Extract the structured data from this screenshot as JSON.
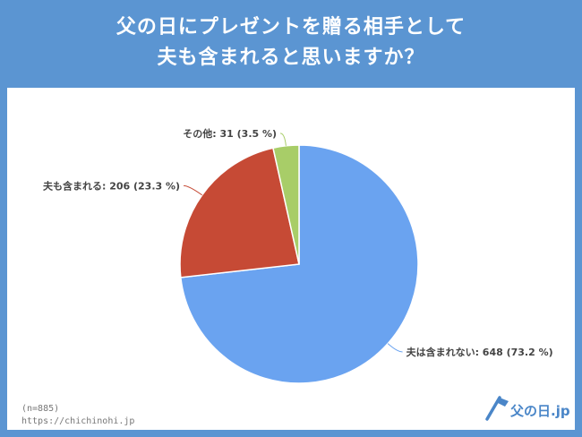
{
  "header": {
    "title_line1": "父の日にプレゼントを贈る相手として",
    "title_line2": "夫も含まれると思いますか？"
  },
  "footer": {
    "sample": "(n=885)",
    "url": "https://chichinohi.jp"
  },
  "logo": {
    "text": "父の日.jp"
  },
  "colors": {
    "frame": "#5b95d2",
    "slice_blue": "#6aa3f0",
    "slice_red": "#c64a35",
    "slice_green": "#a8cd68"
  },
  "chart_data": {
    "type": "pie",
    "slices": [
      {
        "label": "夫は含まれない: 648 (73.2 %)",
        "value": 648,
        "percent": 73.2,
        "color": "#6aa3f0"
      },
      {
        "label": "夫も含まれる: 206 (23.3 %)",
        "value": 206,
        "percent": 23.3,
        "color": "#c64a35"
      },
      {
        "label": "その他: 31 (3.5 %)",
        "value": 31,
        "percent": 3.5,
        "color": "#a8cd68"
      }
    ],
    "start_angle": "12 o'clock",
    "direction": "clockwise"
  }
}
